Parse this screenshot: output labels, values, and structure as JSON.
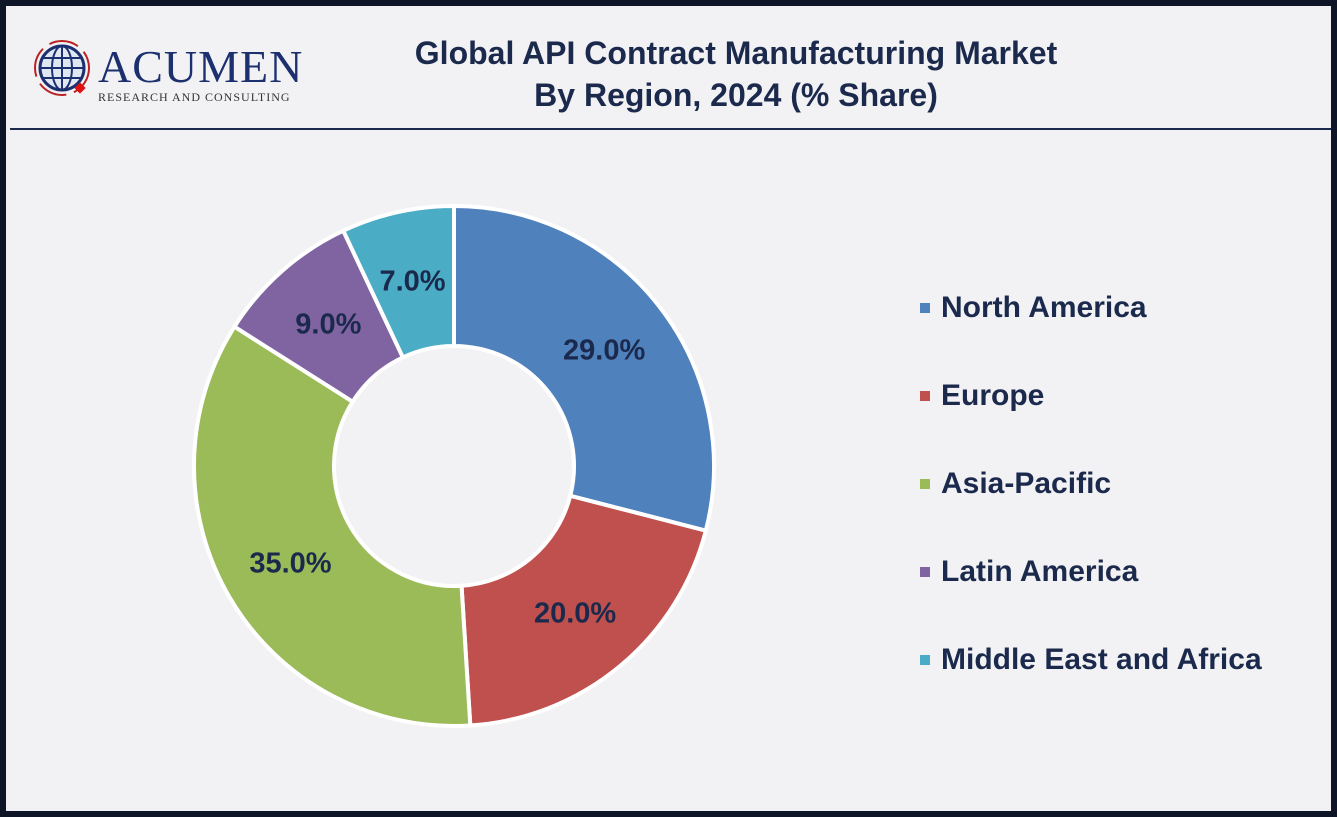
{
  "logo": {
    "word": "ACUMEN",
    "sub": "RESEARCH AND CONSULTING"
  },
  "title_line1": "Global API Contract Manufacturing Market",
  "title_line2": "By Region, 2024 (% Share)",
  "chart_data": {
    "type": "pie",
    "donut": true,
    "title": "Global API Contract Manufacturing Market By Region, 2024 (% Share)",
    "categories": [
      "North America",
      "Europe",
      "Asia-Pacific",
      "Latin America",
      "Middle East and Africa"
    ],
    "values": [
      29.0,
      20.0,
      35.0,
      9.0,
      7.0
    ],
    "labels": [
      "29.0%",
      "20.0%",
      "35.0%",
      "9.0%",
      "7.0%"
    ],
    "colors": [
      "#4f81bd",
      "#c0504d",
      "#9bbb59",
      "#8064a2",
      "#4bacc6"
    ],
    "legend": "right"
  }
}
